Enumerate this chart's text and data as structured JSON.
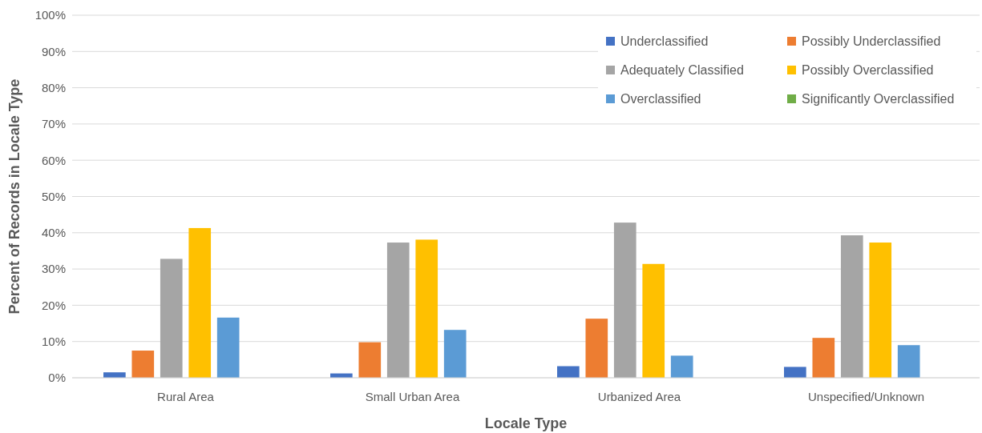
{
  "chart_data": {
    "type": "bar",
    "xlabel": "Locale Type",
    "ylabel": "Percent of Records in Locale Type",
    "categories": [
      "Rural Area",
      "Small Urban Area",
      "Urbanized Area",
      "Unspecified/Unknown"
    ],
    "series": [
      {
        "name": "Underclassified",
        "color": "#4472c4",
        "values": [
          1.5,
          1.2,
          3.2,
          3.0
        ]
      },
      {
        "name": "Possibly Underclassified",
        "color": "#ed7d31",
        "values": [
          7.5,
          9.8,
          16.3,
          11.0
        ]
      },
      {
        "name": "Adequately Classified",
        "color": "#a5a5a5",
        "values": [
          32.8,
          37.3,
          42.8,
          39.3
        ]
      },
      {
        "name": "Possibly Overclassified",
        "color": "#ffc000",
        "values": [
          41.3,
          38.1,
          31.4,
          37.3
        ]
      },
      {
        "name": "Overclassified",
        "color": "#5b9bd5",
        "values": [
          16.6,
          13.2,
          6.1,
          9.0
        ]
      },
      {
        "name": "Significantly Overclassified",
        "color": "#70ad47",
        "values": [
          0,
          0,
          0,
          0
        ]
      }
    ],
    "ylim": [
      0,
      100
    ],
    "yticks": [
      {
        "value": 0,
        "label": "0%"
      },
      {
        "value": 10,
        "label": "10%"
      },
      {
        "value": 20,
        "label": "20%"
      },
      {
        "value": 30,
        "label": "30%"
      },
      {
        "value": 40,
        "label": "40%"
      },
      {
        "value": 50,
        "label": "50%"
      },
      {
        "value": 60,
        "label": "60%"
      },
      {
        "value": 70,
        "label": "70%"
      },
      {
        "value": 80,
        "label": "80%"
      },
      {
        "value": 90,
        "label": "90%"
      },
      {
        "value": 100,
        "label": "100%"
      }
    ],
    "grid": "y",
    "legend": "top right"
  }
}
